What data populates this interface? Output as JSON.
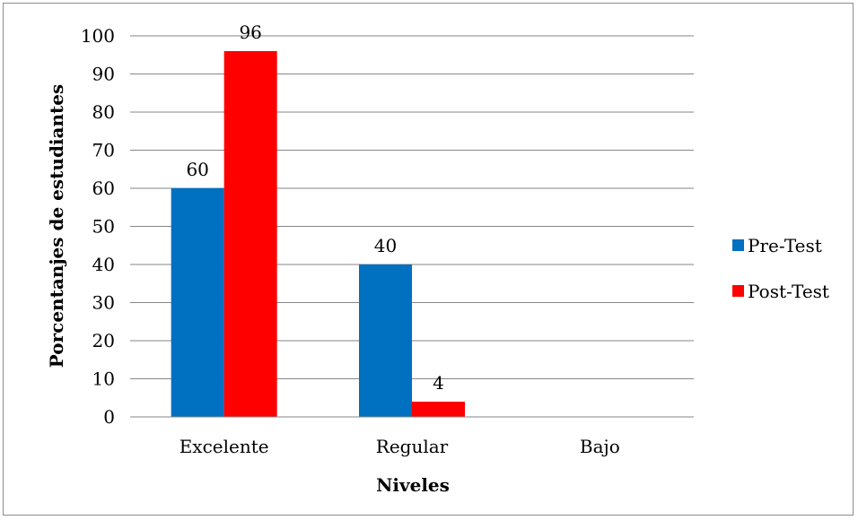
{
  "chart_data": {
    "type": "bar",
    "categories": [
      "Excelente",
      "Regular",
      "Bajo"
    ],
    "series": [
      {
        "name": "Pre-Test",
        "values": [
          60,
          40,
          null
        ],
        "color": "#0070c0"
      },
      {
        "name": "Post-Test",
        "values": [
          96,
          4,
          null
        ],
        "color": "#ff0000"
      }
    ],
    "data_labels": [
      [
        "60",
        "40",
        ""
      ],
      [
        "96",
        "4",
        ""
      ]
    ],
    "xlabel": "Niveles",
    "ylabel": "Porcentanjes de estudiantes",
    "ylim": [
      0,
      100
    ],
    "yticks": [
      0,
      10,
      20,
      30,
      40,
      50,
      60,
      70,
      80,
      90,
      100
    ],
    "grid": true,
    "legend_position": "right"
  }
}
